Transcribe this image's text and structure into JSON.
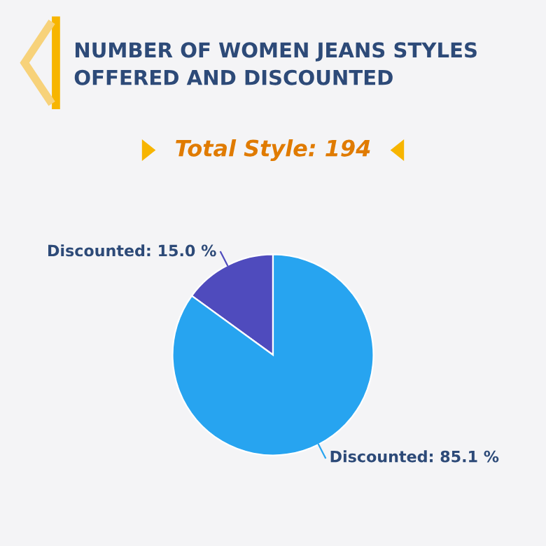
{
  "chart_data": {
    "type": "pie",
    "title": "NUMBER OF WOMEN JEANS STYLES\nOFFERED AND DISCOUNTED",
    "subtitle": "Total Style: 194",
    "categories": [
      "Discounted",
      "Discounted"
    ],
    "values": [
      15.0,
      85.1
    ],
    "colors": [
      "#4f4bbd",
      "#27a4f0"
    ],
    "value_labels": [
      "15.0 %",
      "85.1 %"
    ]
  }
}
